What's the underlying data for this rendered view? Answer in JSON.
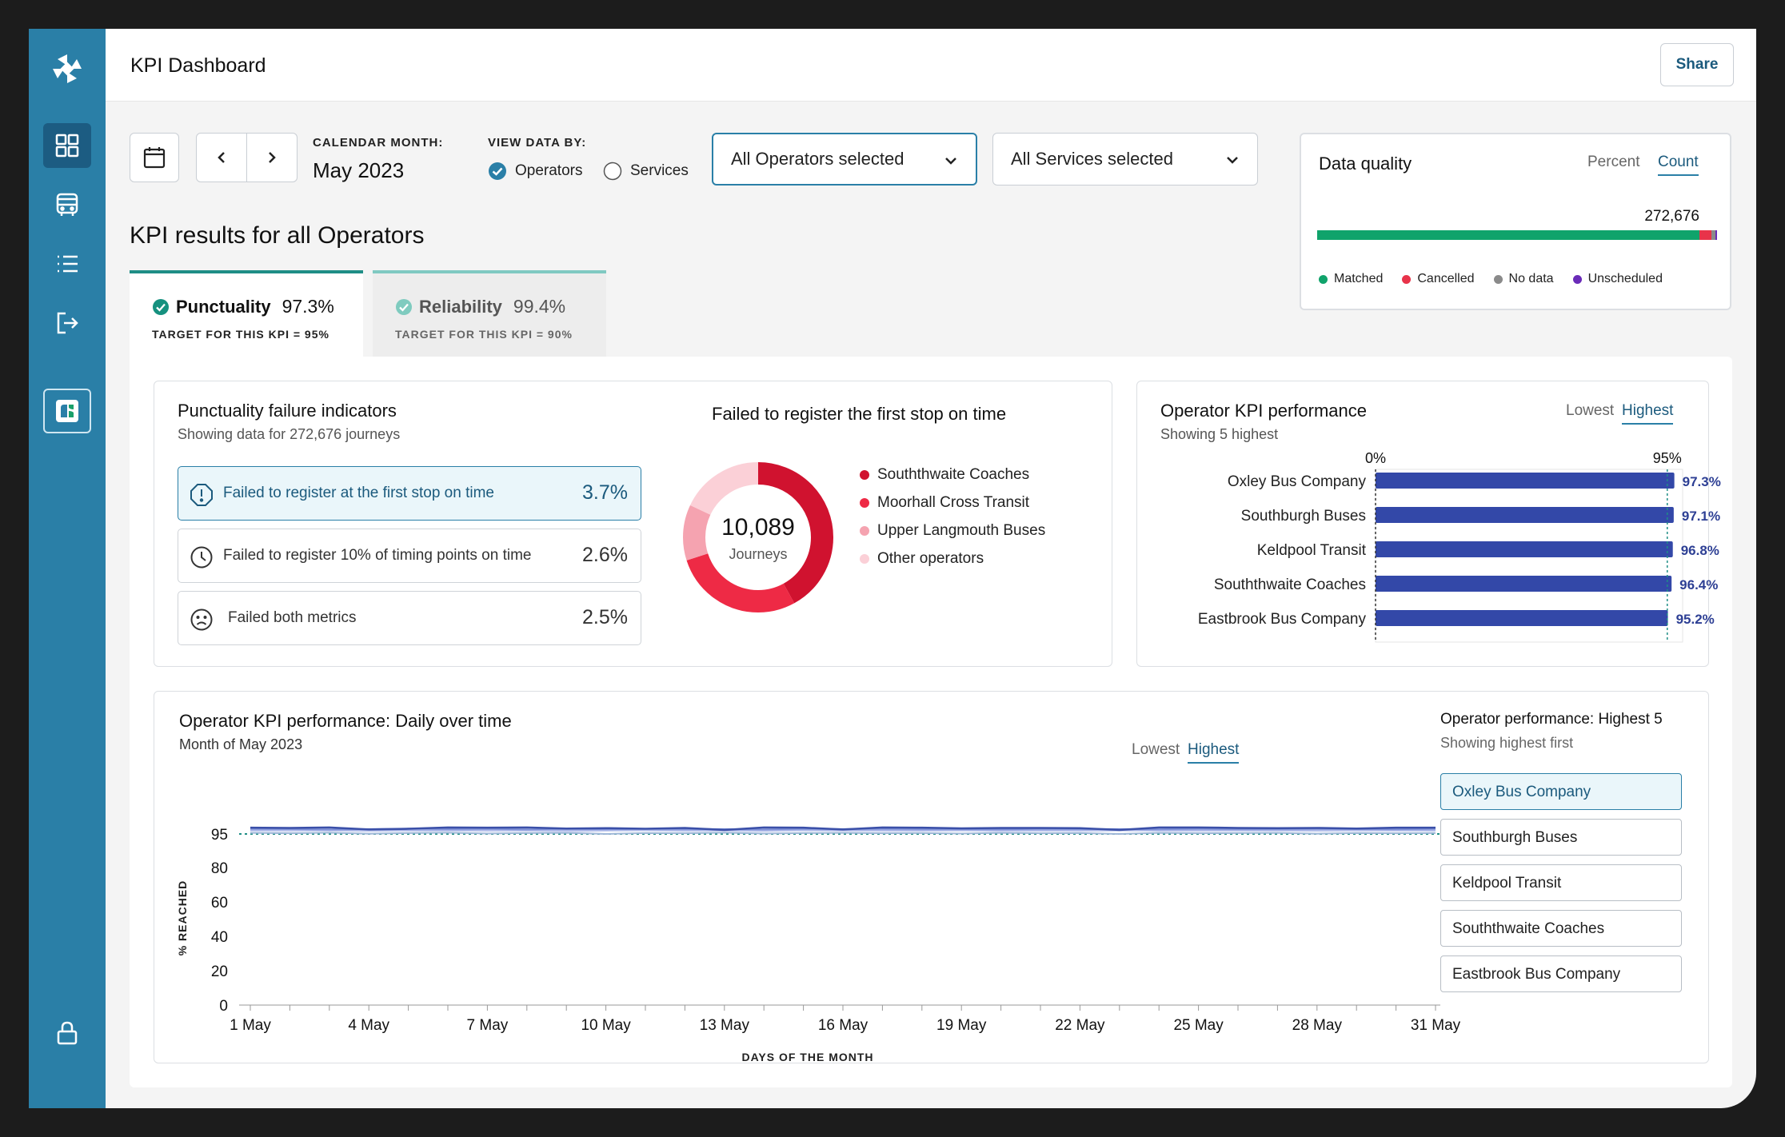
{
  "header": {
    "title": "KPI Dashboard",
    "share_label": "Share"
  },
  "sidebar": {
    "icons": [
      "dashboard-icon",
      "bus-icon",
      "list-icon",
      "logout-icon",
      "app-logo-icon",
      "lock-icon"
    ]
  },
  "filters": {
    "calendar_label": "CALENDAR MONTH:",
    "month": "May 2023",
    "view_label": "VIEW DATA BY:",
    "view_options": [
      "Operators",
      "Services"
    ],
    "view_selected": "Operators",
    "operators_select": "All Operators selected",
    "services_select": "All Services selected"
  },
  "data_quality": {
    "title": "Data quality",
    "toggle": [
      "Percent",
      "Count"
    ],
    "toggle_selected": "Count",
    "total": "272,676",
    "segments": [
      {
        "label": "Matched",
        "value": 0.955,
        "color": "#10a36b"
      },
      {
        "label": "Cancelled",
        "value": 0.03,
        "color": "#e8334a"
      },
      {
        "label": "No data",
        "value": 0.01,
        "color": "#8a8a8a"
      },
      {
        "label": "Unscheduled",
        "value": 0.005,
        "color": "#6a2bb8"
      }
    ]
  },
  "kpi": {
    "heading": "KPI results for all Operators",
    "tabs": [
      {
        "label": "Punctuality",
        "value": "97.3%",
        "target": "TARGET FOR THIS KPI = 95%"
      },
      {
        "label": "Reliability",
        "value": "99.4%",
        "target": "TARGET FOR THIS KPI = 90%"
      }
    ]
  },
  "failure": {
    "title": "Punctuality failure indicators",
    "subtitle": "Showing data for 272,676 journeys",
    "items": [
      {
        "label": "Failed to register at the first stop on time",
        "value": "3.7%"
      },
      {
        "label": "Failed to register 10% of timing points on time",
        "value": "2.6%"
      },
      {
        "label": "Failed both metrics",
        "value": "2.5%"
      }
    ],
    "donut_title": "Failed to register the first stop on time",
    "donut_value": "10,089",
    "donut_unit": "Journeys",
    "donut_segments": [
      {
        "name": "Souththwaite Coaches",
        "value": 0.42,
        "color": "#d0122f"
      },
      {
        "name": "Moorhall Cross Transit",
        "value": 0.28,
        "color": "#ee2a45"
      },
      {
        "name": "Upper Langmouth Buses",
        "value": 0.12,
        "color": "#f5a3b0"
      },
      {
        "name": "Other operators",
        "value": 0.18,
        "color": "#fbd0d7"
      }
    ]
  },
  "operator_perf": {
    "title": "Operator KPI performance",
    "subtitle": "Showing 5 highest",
    "toggle": [
      "Lowest",
      "Highest"
    ],
    "toggle_selected": "Highest",
    "axis_labels": [
      "0%",
      "95%"
    ],
    "target": 95,
    "bars": [
      {
        "name": "Oxley Bus Company",
        "value": 97.3,
        "label": "97.3%"
      },
      {
        "name": "Southburgh Buses",
        "value": 97.1,
        "label": "97.1%"
      },
      {
        "name": "Keldpool Transit",
        "value": 96.8,
        "label": "96.8%"
      },
      {
        "name": "Souththwaite Coaches",
        "value": 96.4,
        "label": "96.4%"
      },
      {
        "name": "Eastbrook Bus Company",
        "value": 95.2,
        "label": "95.2%"
      }
    ]
  },
  "daily": {
    "title": "Operator KPI performance: Daily over time",
    "subtitle": "Month of May 2023",
    "toggle": [
      "Lowest",
      "Highest"
    ],
    "toggle_selected": "Highest",
    "ylabel": "% REACHED",
    "xlabel": "DAYS OF THE MONTH",
    "yticks": [
      "95",
      "80",
      "60",
      "40",
      "20",
      "0"
    ],
    "xticks": [
      "1 May",
      "4 May",
      "7 May",
      "10 May",
      "13 May",
      "16 May",
      "19 May",
      "22 May",
      "25 May",
      "28 May",
      "31 May"
    ],
    "side_title": "Operator performance: Highest 5",
    "side_subtitle": "Showing highest first",
    "operators": [
      "Oxley Bus Company",
      "Southburgh Buses",
      "Keldpool Transit",
      "Souththwaite Coaches",
      "Eastbrook Bus Company"
    ],
    "selected_operator": "Oxley Bus Company"
  },
  "chart_data": {
    "type": "line",
    "x": [
      1,
      2,
      3,
      4,
      5,
      6,
      7,
      8,
      9,
      10,
      11,
      12,
      13,
      14,
      15,
      16,
      17,
      18,
      19,
      20,
      21,
      22,
      23,
      24,
      25,
      26,
      27,
      28,
      29,
      30,
      31
    ],
    "series": [
      {
        "values": [
          97.8,
          97.7,
          97.9,
          97.0,
          97.3,
          97.9,
          97.8,
          97.9,
          97.4,
          97.6,
          97.3,
          97.7,
          96.8,
          97.9,
          97.8,
          97.0,
          97.9,
          97.8,
          97.5,
          97.7,
          97.7,
          97.6,
          96.8,
          97.9,
          97.9,
          97.7,
          97.6,
          97.7,
          97.4,
          97.8,
          97.8
        ],
        "color": "#3a4fa8"
      },
      {
        "values": [
          97.3,
          97.2,
          97.0,
          97.2,
          97.4,
          97.2,
          97.3,
          97.0,
          97.3,
          97.1,
          97.3,
          97.2,
          97.2,
          97.0,
          97.3,
          97.2,
          97.3,
          97.2,
          97.2,
          97.0,
          97.3,
          97.2,
          97.2,
          97.1,
          97.3,
          97.2,
          97.2,
          97.3,
          97.2,
          97.1,
          97.3
        ],
        "color": "#7d8fd6"
      },
      {
        "values": [
          96.8,
          96.9,
          96.7,
          96.8,
          96.8,
          96.6,
          96.9,
          96.8,
          96.7,
          96.8,
          96.9,
          96.7,
          96.8,
          96.7,
          96.9,
          96.8,
          96.8,
          96.6,
          96.8,
          96.8,
          96.7,
          96.8,
          96.9,
          96.7,
          96.8,
          96.8,
          96.6,
          96.8,
          96.9,
          96.8,
          96.7
        ],
        "color": "#a7b4e6"
      },
      {
        "values": [
          96.4,
          96.3,
          96.5,
          96.2,
          96.4,
          96.5,
          96.3,
          96.4,
          96.1,
          96.4,
          96.5,
          96.3,
          96.4,
          96.2,
          96.5,
          96.4,
          96.3,
          96.4,
          96.5,
          96.2,
          96.4,
          96.3,
          96.5,
          96.4,
          96.3,
          96.4,
          96.5,
          96.3,
          96.4,
          96.4,
          96.4
        ],
        "color": "#c8d0f0"
      },
      {
        "values": [
          95.5,
          95.3,
          95.6,
          95.1,
          95.4,
          95.6,
          95.2,
          95.4,
          95.5,
          95.0,
          95.4,
          95.3,
          95.6,
          95.2,
          95.4,
          95.5,
          95.3,
          95.4,
          95.2,
          95.5,
          95.3,
          95.4,
          95.0,
          95.5,
          95.3,
          95.4,
          95.5,
          95.1,
          95.4,
          95.3,
          95.4
        ],
        "color": "#9fb7d8"
      }
    ],
    "target": 95,
    "xlabel": "DAYS OF THE MONTH",
    "ylabel": "% REACHED",
    "ylim": [
      0,
      100
    ]
  }
}
